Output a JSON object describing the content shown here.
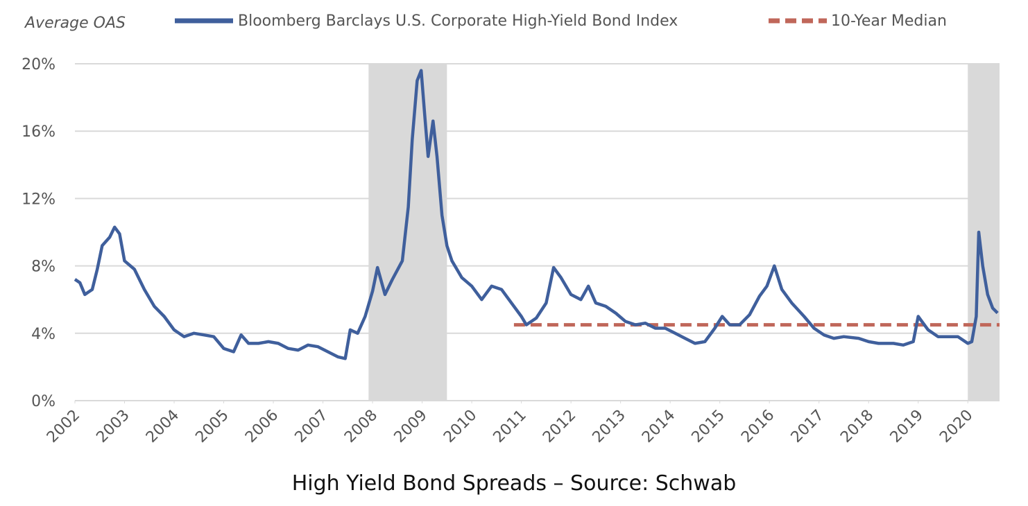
{
  "chart_data": {
    "type": "line",
    "ylabel": "Average OAS",
    "caption": "High Yield Bond Spreads – Source: Schwab",
    "xlim": [
      2002,
      2020.64
    ],
    "xticks": [
      {
        "value": 2002,
        "label": "2002"
      },
      {
        "value": 2003,
        "label": "2003"
      },
      {
        "value": 2004,
        "label": "2004"
      },
      {
        "value": 2005,
        "label": "2005"
      },
      {
        "value": 2006,
        "label": "2006"
      },
      {
        "value": 2007,
        "label": "2007"
      },
      {
        "value": 2008,
        "label": "2008"
      },
      {
        "value": 2009,
        "label": "2009"
      },
      {
        "value": 2010,
        "label": "2010"
      },
      {
        "value": 2011,
        "label": "2011"
      },
      {
        "value": 2012,
        "label": "2012"
      },
      {
        "value": 2013,
        "label": "2013"
      },
      {
        "value": 2014,
        "label": "2014"
      },
      {
        "value": 2015,
        "label": "2015"
      },
      {
        "value": 2016,
        "label": "2016"
      },
      {
        "value": 2017,
        "label": "2017"
      },
      {
        "value": 2018,
        "label": "2018"
      },
      {
        "value": 2019,
        "label": "2019"
      },
      {
        "value": 2020,
        "label": "2020"
      }
    ],
    "ylim": [
      0,
      20
    ],
    "yticks": [
      {
        "value": 0,
        "label": "0%"
      },
      {
        "value": 4,
        "label": "4%"
      },
      {
        "value": 8,
        "label": "8%"
      },
      {
        "value": 12,
        "label": "12%"
      },
      {
        "value": 16,
        "label": "16%"
      },
      {
        "value": 20,
        "label": "20%"
      }
    ],
    "grid": true,
    "shaded_periods": [
      [
        2007.92,
        2009.5
      ],
      [
        2020.0,
        2020.64
      ]
    ],
    "shade_color": "#d9d9d9",
    "series": [
      {
        "name": "Bloomberg Barclays U.S. Corporate High-Yield Bond Index",
        "color": "#3f5f9c",
        "dashed": false,
        "x": [
          2002.0,
          2002.1,
          2002.2,
          2002.35,
          2002.45,
          2002.55,
          2002.7,
          2002.8,
          2002.9,
          2003.0,
          2003.2,
          2003.4,
          2003.6,
          2003.8,
          2004.0,
          2004.2,
          2004.4,
          2004.6,
          2004.8,
          2005.0,
          2005.2,
          2005.35,
          2005.5,
          2005.7,
          2005.9,
          2006.1,
          2006.3,
          2006.5,
          2006.7,
          2006.9,
          2007.1,
          2007.3,
          2007.45,
          2007.55,
          2007.7,
          2007.85,
          2008.0,
          2008.1,
          2008.25,
          2008.4,
          2008.6,
          2008.72,
          2008.8,
          2008.9,
          2008.98,
          2009.05,
          2009.12,
          2009.22,
          2009.3,
          2009.4,
          2009.5,
          2009.6,
          2009.8,
          2010.0,
          2010.2,
          2010.4,
          2010.6,
          2010.8,
          2011.0,
          2011.1,
          2011.3,
          2011.5,
          2011.65,
          2011.8,
          2012.0,
          2012.2,
          2012.35,
          2012.5,
          2012.7,
          2012.9,
          2013.1,
          2013.3,
          2013.5,
          2013.7,
          2013.9,
          2014.1,
          2014.3,
          2014.5,
          2014.7,
          2014.9,
          2015.05,
          2015.2,
          2015.4,
          2015.6,
          2015.8,
          2015.95,
          2016.1,
          2016.25,
          2016.45,
          2016.7,
          2016.9,
          2017.1,
          2017.3,
          2017.5,
          2017.8,
          2018.0,
          2018.2,
          2018.5,
          2018.7,
          2018.9,
          2019.0,
          2019.2,
          2019.4,
          2019.6,
          2019.8,
          2020.0,
          2020.08,
          2020.17,
          2020.22,
          2020.3,
          2020.4,
          2020.5,
          2020.6
        ],
        "values": [
          7.2,
          7.0,
          6.3,
          6.6,
          7.8,
          9.2,
          9.7,
          10.3,
          9.9,
          8.3,
          7.8,
          6.6,
          5.6,
          5.0,
          4.2,
          3.8,
          4.0,
          3.9,
          3.8,
          3.1,
          2.9,
          3.9,
          3.4,
          3.4,
          3.5,
          3.4,
          3.1,
          3.0,
          3.3,
          3.2,
          2.9,
          2.6,
          2.5,
          4.2,
          4.0,
          5.0,
          6.5,
          7.9,
          6.3,
          7.2,
          8.3,
          11.5,
          15.5,
          19.0,
          19.6,
          17.0,
          14.5,
          16.6,
          14.5,
          11.0,
          9.2,
          8.3,
          7.3,
          6.8,
          6.0,
          6.8,
          6.6,
          5.8,
          5.0,
          4.5,
          4.9,
          5.8,
          7.9,
          7.3,
          6.3,
          6.0,
          6.8,
          5.8,
          5.6,
          5.2,
          4.7,
          4.5,
          4.6,
          4.3,
          4.3,
          4.0,
          3.7,
          3.4,
          3.5,
          4.3,
          5.0,
          4.5,
          4.5,
          5.1,
          6.2,
          6.8,
          8.0,
          6.6,
          5.8,
          5.0,
          4.3,
          3.9,
          3.7,
          3.8,
          3.7,
          3.5,
          3.4,
          3.4,
          3.3,
          3.5,
          5.0,
          4.2,
          3.8,
          3.8,
          3.8,
          3.4,
          3.5,
          5.0,
          10.0,
          8.0,
          6.3,
          5.5,
          5.2
        ]
      },
      {
        "name": "10-Year Median",
        "color": "#c0675a",
        "dashed": true,
        "x": [
          2010.85,
          2020.64
        ],
        "values": [
          4.5,
          4.5
        ]
      }
    ]
  }
}
